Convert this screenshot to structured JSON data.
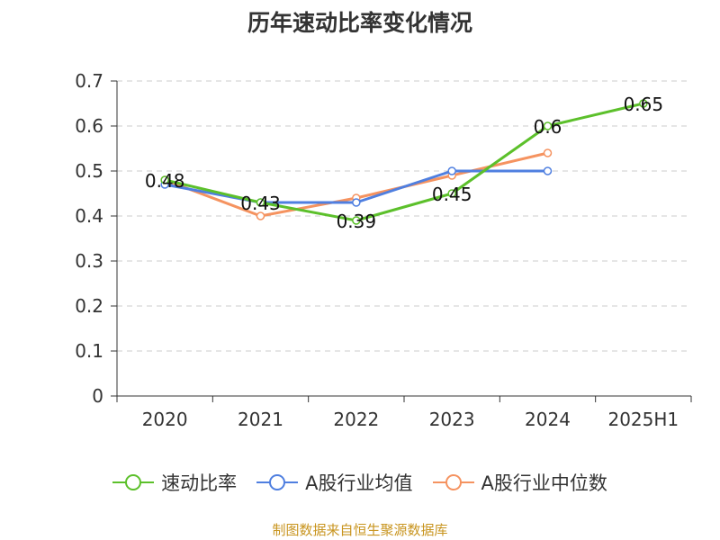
{
  "chart_data": {
    "type": "line",
    "title": "历年速动比率变化情况",
    "categories": [
      "2020",
      "2021",
      "2022",
      "2023",
      "2024",
      "2025H1"
    ],
    "y_ticks": [
      "0",
      "0.1",
      "0.2",
      "0.3",
      "0.4",
      "0.5",
      "0.6",
      "0.7"
    ],
    "ylim": [
      0,
      0.7
    ],
    "grid": true,
    "legend_position": "bottom",
    "series": [
      {
        "name": "速动比率",
        "color": "#5cc02b",
        "values": [
          0.48,
          0.43,
          0.39,
          0.45,
          0.6,
          0.65
        ],
        "labels": [
          "0.48",
          "0.43",
          "0.39",
          "0.45",
          "0.6",
          "0.65"
        ]
      },
      {
        "name": "A股行业均值",
        "color": "#4f7fe0",
        "values": [
          0.47,
          0.43,
          0.43,
          0.5,
          0.5,
          null
        ]
      },
      {
        "name": "A股行业中位数",
        "color": "#f59360",
        "values": [
          0.48,
          0.4,
          0.44,
          0.49,
          0.54,
          null
        ]
      }
    ]
  },
  "source_text": "制图数据来自恒生聚源数据库"
}
